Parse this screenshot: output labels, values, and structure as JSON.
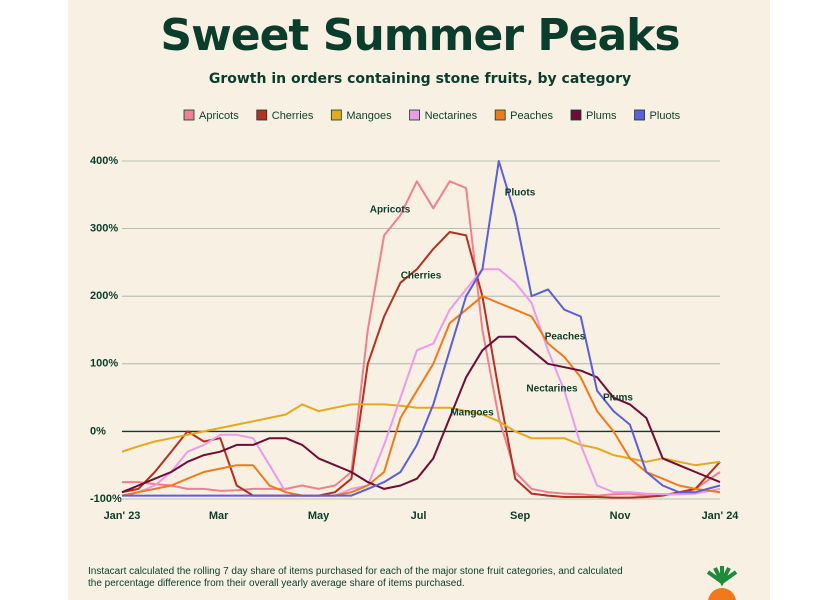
{
  "chart_data": {
    "type": "line",
    "title": "Sweet Summer Peaks",
    "subtitle": "Growth in orders containing stone fruits, by category",
    "footnote": "Instacart calculated the rolling 7 day share of items purchased for each of the major stone fruit categories, and calculated the percentage difference from their overall yearly average share of items purchased.",
    "x": [
      0,
      10,
      20,
      30,
      40,
      50,
      60,
      70,
      80,
      90,
      100,
      110,
      120,
      130,
      140,
      150,
      160,
      170,
      180,
      190,
      200,
      210,
      220,
      230,
      240,
      250,
      260,
      270,
      280,
      290,
      300,
      310,
      320,
      330,
      340,
      350,
      365
    ],
    "xlim": [
      0,
      365
    ],
    "xticks": [
      {
        "value": 0,
        "label": "Jan' 23"
      },
      {
        "value": 59,
        "label": "Mar"
      },
      {
        "value": 120,
        "label": "May"
      },
      {
        "value": 181,
        "label": "Jul"
      },
      {
        "value": 243,
        "label": "Sep"
      },
      {
        "value": 304,
        "label": "Nov"
      },
      {
        "value": 365,
        "label": "Jan' 24"
      }
    ],
    "ylim": [
      -100,
      420
    ],
    "yticks": [
      {
        "value": -100,
        "label": "-100%"
      },
      {
        "value": 0,
        "label": "0%"
      },
      {
        "value": 100,
        "label": "100%"
      },
      {
        "value": 200,
        "label": "200%"
      },
      {
        "value": 300,
        "label": "300%"
      },
      {
        "value": 400,
        "label": "400%"
      }
    ],
    "grid": true,
    "series": [
      {
        "name": "Apricots",
        "color": "#f07f8f",
        "values": [
          -75,
          -75,
          -78,
          -80,
          -85,
          -85,
          -88,
          -87,
          -85,
          -85,
          -85,
          -80,
          -85,
          -80,
          -60,
          150,
          290,
          320,
          370,
          330,
          370,
          360,
          150,
          20,
          -60,
          -85,
          -90,
          -92,
          -93,
          -95,
          -93,
          -92,
          -95,
          -93,
          -93,
          -85,
          -60
        ]
      },
      {
        "name": "Cherries",
        "color": "#b5301e",
        "values": [
          -90,
          -85,
          -60,
          -30,
          0,
          -15,
          -10,
          -80,
          -95,
          -95,
          -95,
          -95,
          -95,
          -90,
          -70,
          100,
          170,
          220,
          240,
          270,
          295,
          290,
          200,
          60,
          -70,
          -92,
          -95,
          -97,
          -97,
          -97,
          -98,
          -98,
          -97,
          -95,
          -90,
          -85,
          -45
        ]
      },
      {
        "name": "Mangoes",
        "color": "#e5a91c",
        "values": [
          -30,
          -22,
          -15,
          -10,
          -5,
          0,
          5,
          10,
          15,
          20,
          25,
          40,
          30,
          35,
          40,
          40,
          40,
          38,
          35,
          35,
          35,
          30,
          25,
          15,
          0,
          -10,
          -10,
          -10,
          -20,
          -25,
          -35,
          -40,
          -45,
          -40,
          -45,
          -50,
          -45
        ]
      },
      {
        "name": "Nectarines",
        "color": "#ec9be8",
        "values": [
          -95,
          -90,
          -80,
          -60,
          -30,
          -20,
          -5,
          -5,
          -10,
          -50,
          -90,
          -95,
          -95,
          -95,
          -85,
          -80,
          -20,
          50,
          120,
          130,
          180,
          210,
          240,
          240,
          220,
          190,
          120,
          60,
          -20,
          -80,
          -90,
          -90,
          -92,
          -93,
          -93,
          -92,
          -85
        ]
      },
      {
        "name": "Peaches",
        "color": "#f07a1b",
        "values": [
          -95,
          -90,
          -85,
          -80,
          -70,
          -60,
          -55,
          -50,
          -50,
          -80,
          -90,
          -95,
          -95,
          -95,
          -90,
          -80,
          -60,
          20,
          60,
          100,
          160,
          180,
          200,
          190,
          180,
          170,
          130,
          110,
          80,
          30,
          0,
          -40,
          -60,
          -70,
          -80,
          -85,
          -90
        ]
      },
      {
        "name": "Plums",
        "color": "#6e0d37",
        "values": [
          -90,
          -80,
          -70,
          -60,
          -45,
          -35,
          -30,
          -20,
          -20,
          -10,
          -10,
          -20,
          -40,
          -50,
          -60,
          -75,
          -85,
          -80,
          -70,
          -40,
          20,
          80,
          120,
          140,
          140,
          120,
          100,
          95,
          90,
          80,
          50,
          40,
          20,
          -40,
          -50,
          -60,
          -75
        ]
      },
      {
        "name": "Pluots",
        "color": "#5b5fd8",
        "values": [
          -95,
          -95,
          -95,
          -95,
          -95,
          -95,
          -95,
          -95,
          -95,
          -95,
          -95,
          -95,
          -95,
          -95,
          -95,
          -85,
          -75,
          -60,
          -20,
          40,
          120,
          200,
          240,
          400,
          320,
          200,
          210,
          180,
          170,
          60,
          30,
          10,
          -60,
          -80,
          -90,
          -90,
          -80
        ]
      }
    ],
    "annotations": [
      "Apricots",
      "Cherries",
      "Mangoes",
      "Nectarines",
      "Peaches",
      "Plums",
      "Pluots"
    ]
  }
}
